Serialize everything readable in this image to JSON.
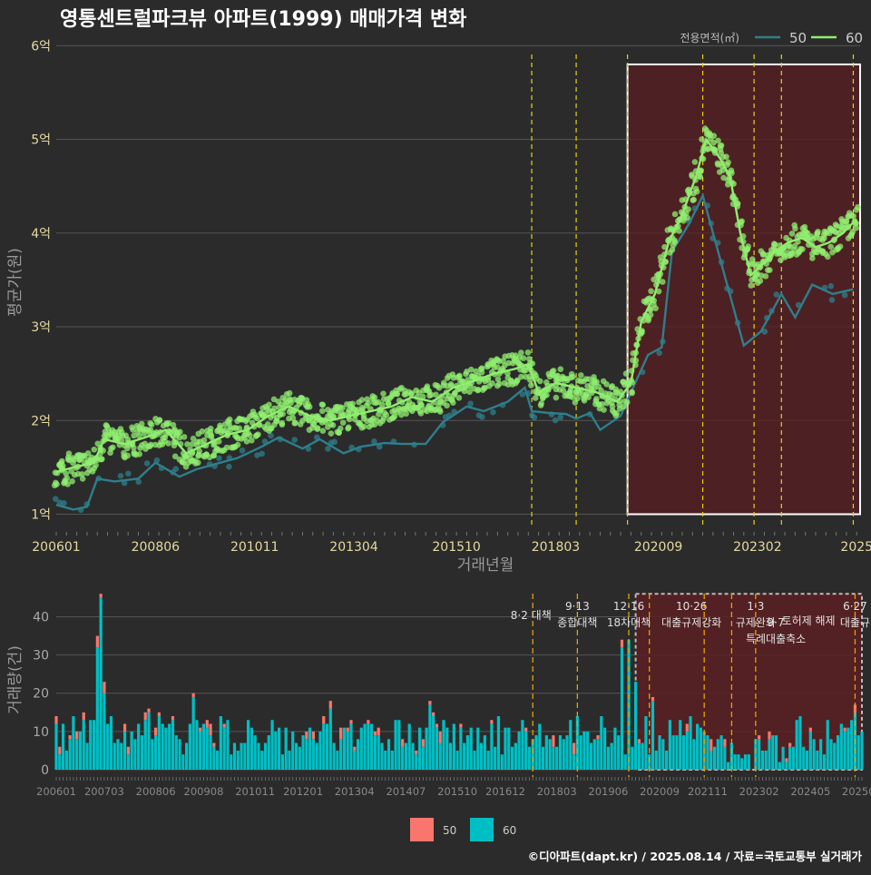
{
  "title": "영통센트럴파크뷰 아파트(1999) 매매가격 변화",
  "footer": "©디아파트(dapt.kr) / 2025.08.14 / 자료=국토교통부 실거래가",
  "colors": {
    "background": "#2b2b2b",
    "grid": "#555555",
    "series_50": "#2e7f8c",
    "series_60": "#90ee70",
    "bar_50": "#f8766d",
    "bar_60": "#00bfc4",
    "policy_line": "#e8d020",
    "highlight_fill": "#5a1e22",
    "text": "#dddddd",
    "axis_text": "#e6d9a0"
  },
  "legend_top": {
    "title": "전용면적(㎡)",
    "items": [
      {
        "label": "50",
        "color": "#2e7f8c"
      },
      {
        "label": "60",
        "color": "#90ee70"
      }
    ],
    "placement": "top-right"
  },
  "legend_bottom": {
    "items": [
      {
        "label": "50",
        "color": "#f8766d"
      },
      {
        "label": "60",
        "color": "#00bfc4"
      }
    ],
    "placement": "bottom-center"
  },
  "chart_data": [
    {
      "type": "line",
      "id": "price",
      "xlabel": "거래년월",
      "ylabel": "평균가(원)",
      "x_range": [
        "2006-01",
        "2025-08"
      ],
      "ylim": [
        0.85,
        6.1
      ],
      "y_ticks": [
        1,
        2,
        3,
        4,
        5,
        6
      ],
      "y_tick_labels": [
        "1억",
        "2억",
        "3억",
        "4억",
        "5억",
        "6억"
      ],
      "x_ticks": [
        "2006-01",
        "2008-06",
        "2010-11",
        "2013-04",
        "2015-10",
        "2018-03",
        "2020-09",
        "2023-02",
        "2025-07"
      ],
      "x_tick_labels": [
        "200601",
        "200806",
        "201011",
        "201304",
        "201510",
        "201803",
        "202009",
        "202302",
        "2025"
      ],
      "grid": true,
      "highlight": {
        "from": "2019-12",
        "to": "2025-08",
        "ymin": 1.0,
        "ymax": 5.8
      },
      "policy_lines": [
        "2017-08",
        "2018-09",
        "2019-12",
        "2021-10",
        "2023-01",
        "2023-09",
        "2025-06"
      ],
      "series": [
        {
          "name": "50",
          "points": [
            [
              "2006-01",
              1.1
            ],
            [
              "2006-06",
              1.05
            ],
            [
              "2006-10",
              1.08
            ],
            [
              "2007-01",
              1.38
            ],
            [
              "2007-06",
              1.35
            ],
            [
              "2008-01",
              1.38
            ],
            [
              "2008-06",
              1.55
            ],
            [
              "2009-01",
              1.4
            ],
            [
              "2009-06",
              1.48
            ],
            [
              "2010-01",
              1.55
            ],
            [
              "2010-06",
              1.6
            ],
            [
              "2011-01",
              1.72
            ],
            [
              "2011-06",
              1.82
            ],
            [
              "2012-01",
              1.7
            ],
            [
              "2012-06",
              1.8
            ],
            [
              "2013-01",
              1.65
            ],
            [
              "2013-06",
              1.72
            ],
            [
              "2014-01",
              1.76
            ],
            [
              "2014-06",
              1.75
            ],
            [
              "2015-01",
              1.75
            ],
            [
              "2015-06",
              1.98
            ],
            [
              "2016-01",
              2.15
            ],
            [
              "2016-06",
              2.1
            ],
            [
              "2017-01",
              2.2
            ],
            [
              "2017-06",
              2.35
            ],
            [
              "2017-08",
              2.1
            ],
            [
              "2018-01",
              2.08
            ],
            [
              "2018-06",
              2.07
            ],
            [
              "2018-09",
              2.02
            ],
            [
              "2019-01",
              2.08
            ],
            [
              "2019-04",
              1.9
            ],
            [
              "2019-10",
              2.05
            ],
            [
              "2020-01",
              2.3
            ],
            [
              "2020-06",
              2.7
            ],
            [
              "2020-10",
              2.78
            ],
            [
              "2021-01",
              3.8
            ],
            [
              "2021-06",
              4.1
            ],
            [
              "2021-10",
              4.4
            ],
            [
              "2022-10",
              2.8
            ],
            [
              "2023-03",
              2.95
            ],
            [
              "2023-09",
              3.35
            ],
            [
              "2024-01",
              3.1
            ],
            [
              "2024-06",
              3.45
            ],
            [
              "2024-12",
              3.35
            ],
            [
              "2025-06",
              3.4
            ]
          ]
        },
        {
          "name": "60",
          "points": [
            [
              "2006-01",
              1.45
            ],
            [
              "2006-06",
              1.5
            ],
            [
              "2006-12",
              1.55
            ],
            [
              "2007-03",
              1.8
            ],
            [
              "2007-09",
              1.75
            ],
            [
              "2008-03",
              1.82
            ],
            [
              "2008-09",
              1.9
            ],
            [
              "2009-03",
              1.65
            ],
            [
              "2009-09",
              1.75
            ],
            [
              "2010-03",
              1.85
            ],
            [
              "2010-09",
              1.9
            ],
            [
              "2011-03",
              2.05
            ],
            [
              "2011-09",
              2.15
            ],
            [
              "2012-03",
              2.05
            ],
            [
              "2012-09",
              2.0
            ],
            [
              "2013-03",
              2.05
            ],
            [
              "2013-09",
              2.1
            ],
            [
              "2014-03",
              2.15
            ],
            [
              "2014-09",
              2.25
            ],
            [
              "2015-03",
              2.2
            ],
            [
              "2015-09",
              2.35
            ],
            [
              "2016-03",
              2.42
            ],
            [
              "2016-09",
              2.5
            ],
            [
              "2017-03",
              2.55
            ],
            [
              "2017-07",
              2.6
            ],
            [
              "2017-10",
              2.3
            ],
            [
              "2018-03",
              2.4
            ],
            [
              "2018-09",
              2.35
            ],
            [
              "2019-03",
              2.3
            ],
            [
              "2019-09",
              2.2
            ],
            [
              "2020-01",
              2.4
            ],
            [
              "2020-04",
              3.05
            ],
            [
              "2020-08",
              3.35
            ],
            [
              "2020-12",
              3.9
            ],
            [
              "2021-04",
              4.2
            ],
            [
              "2021-08",
              4.6
            ],
            [
              "2021-11",
              5.0
            ],
            [
              "2022-03",
              4.8
            ],
            [
              "2022-06",
              4.6
            ],
            [
              "2022-09",
              4.0
            ],
            [
              "2022-12",
              3.55
            ],
            [
              "2023-03",
              3.65
            ],
            [
              "2023-07",
              3.8
            ],
            [
              "2023-11",
              3.9
            ],
            [
              "2024-03",
              3.95
            ],
            [
              "2024-07",
              3.85
            ],
            [
              "2024-11",
              3.9
            ],
            [
              "2025-03",
              4.0
            ],
            [
              "2025-07",
              4.15
            ]
          ]
        }
      ]
    },
    {
      "type": "bar",
      "id": "volume",
      "ylabel": "거래량(건)",
      "x_range": [
        "2006-01",
        "2025-08"
      ],
      "ylim": [
        0,
        47
      ],
      "y_ticks": [
        0,
        10,
        20,
        30,
        40
      ],
      "y_tick_labels": [
        "0",
        "10",
        "20",
        "30",
        "40"
      ],
      "x_ticks": [
        "2006-01",
        "2007-03",
        "2008-06",
        "2009-08",
        "2010-11",
        "2012-01",
        "2013-04",
        "2014-07",
        "2015-10",
        "2016-12",
        "2018-03",
        "2019-06",
        "2020-09",
        "2021-11",
        "2023-02",
        "2024-05",
        "2025-07"
      ],
      "x_tick_labels": [
        "200601",
        "200703",
        "200806",
        "200908",
        "201011",
        "201201",
        "201304",
        "201407",
        "201510",
        "201612",
        "201803",
        "201906",
        "202009",
        "202111",
        "202302",
        "202405",
        "20250"
      ],
      "grid": true,
      "highlight": {
        "from": "2020-02",
        "to": "2025-08",
        "ymin": 0,
        "ymax": 46
      },
      "policy_lines": [
        "2017-08",
        "2018-09",
        "2019-12",
        "2020-06",
        "2021-10",
        "2022-06",
        "2023-01",
        "2025-06"
      ],
      "annotations": [
        {
          "date": "2017-08",
          "lines": [
            "8·2 대책"
          ]
        },
        {
          "date": "2018-09",
          "lines": [
            "9·13",
            "종합대책"
          ]
        },
        {
          "date": "2019-12",
          "lines": [
            "12·16",
            "18차대책"
          ]
        },
        {
          "date": "2021-10",
          "lines": [
            "10·26",
            "대출규제강화"
          ]
        },
        {
          "date": "2023-01",
          "lines": [
            "1·3",
            "규제완화"
          ]
        },
        {
          "date": "2023-09",
          "lines": [
            "9·7",
            "특례대출축소"
          ]
        },
        {
          "date": "2023-09",
          "lines": [
            "토허제 해제"
          ]
        },
        {
          "date": "2025-06",
          "lines": [
            "6·27",
            "대출규"
          ]
        }
      ],
      "series_names": [
        "50",
        "60"
      ],
      "key_months": [
        {
          "date": "2006-01",
          "s50": 2,
          "s60": 12
        },
        {
          "date": "2007-01",
          "s50": 3,
          "s60": 32
        },
        {
          "date": "2007-02",
          "s50": 1,
          "s60": 45
        },
        {
          "date": "2007-03",
          "s50": 3,
          "s60": 20
        },
        {
          "date": "2008-04",
          "s50": 1,
          "s60": 15
        },
        {
          "date": "2009-05",
          "s50": 1,
          "s60": 19
        },
        {
          "date": "2012-09",
          "s50": 2,
          "s60": 16
        },
        {
          "date": "2015-02",
          "s50": 1,
          "s60": 17
        },
        {
          "date": "2019-10",
          "s50": 2,
          "s60": 32
        },
        {
          "date": "2019-12",
          "s50": 0,
          "s60": 34
        },
        {
          "date": "2020-02",
          "s50": 0,
          "s60": 23
        },
        {
          "date": "2020-07",
          "s50": 1,
          "s60": 18
        },
        {
          "date": "2021-06",
          "s50": 0,
          "s60": 14
        },
        {
          "date": "2025-06",
          "s50": 2,
          "s60": 15
        }
      ]
    }
  ]
}
